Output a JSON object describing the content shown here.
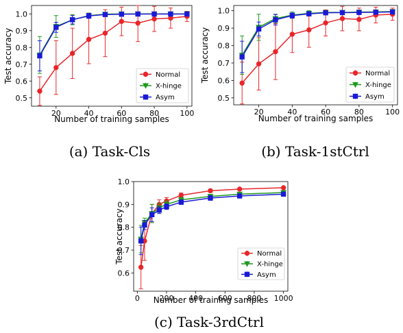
{
  "chart_data": [
    {
      "type": "line",
      "caption": "(a) Task-Cls",
      "xlabel": "Number of training samples",
      "ylabel": "Test accuracy",
      "xlim": [
        5,
        103
      ],
      "ylim": [
        0.45,
        1.05
      ],
      "xticks": [
        20,
        40,
        60,
        80,
        100
      ],
      "yticks": [
        0.5,
        0.6,
        0.7,
        0.8,
        0.9,
        1.0
      ],
      "ytick_labels": [
        "0.5",
        "0.6",
        "0.7",
        "0.8",
        "0.9",
        "1.0"
      ],
      "legend_position": "lower-right",
      "x": [
        10,
        20,
        30,
        40,
        50,
        60,
        70,
        80,
        90,
        100
      ],
      "series": [
        {
          "name": "Normal",
          "color": "#e8262a",
          "marker": "circle",
          "values": [
            0.54,
            0.68,
            0.765,
            0.848,
            0.885,
            0.955,
            0.945,
            0.97,
            0.975,
            0.985
          ],
          "err": [
            0.085,
            0.16,
            0.15,
            0.145,
            0.14,
            0.085,
            0.11,
            0.075,
            0.06,
            0.03
          ]
        },
        {
          "name": "X-hinge",
          "color": "#1e9a1e",
          "marker": "triangle-down",
          "values": [
            0.755,
            0.925,
            0.965,
            0.99,
            0.998,
            1.0,
            1.0,
            1.0,
            1.0,
            1.0
          ],
          "err": [
            0.11,
            0.065,
            0.03,
            0.015,
            0.008,
            0.003,
            0.003,
            0.002,
            0.002,
            0.002
          ]
        },
        {
          "name": "Asym",
          "color": "#1a1ad6",
          "marker": "square",
          "values": [
            0.75,
            0.92,
            0.965,
            0.988,
            0.996,
            0.998,
            0.999,
            0.999,
            0.999,
            0.999
          ],
          "err": [
            0.09,
            0.03,
            0.025,
            0.015,
            0.008,
            0.005,
            0.004,
            0.003,
            0.003,
            0.003
          ]
        }
      ]
    },
    {
      "type": "line",
      "caption": "(b) Task-1stCtrl",
      "xlabel": "Number of training samples",
      "ylabel": "Test accuracy",
      "xlim": [
        5,
        103
      ],
      "ylim": [
        0.46,
        1.03
      ],
      "xticks": [
        20,
        40,
        60,
        80,
        100
      ],
      "yticks": [
        0.5,
        0.6,
        0.7,
        0.8,
        0.9,
        1.0
      ],
      "ytick_labels": [
        "0.5",
        "0.6",
        "0.7",
        "0.8",
        "0.9",
        "1.0"
      ],
      "legend_position": "lower-right",
      "x": [
        10,
        20,
        30,
        40,
        50,
        60,
        70,
        80,
        90,
        100
      ],
      "series": [
        {
          "name": "Normal",
          "color": "#e8262a",
          "marker": "circle",
          "values": [
            0.585,
            0.695,
            0.765,
            0.865,
            0.89,
            0.93,
            0.955,
            0.95,
            0.975,
            0.98
          ],
          "err": [
            0.12,
            0.15,
            0.16,
            0.105,
            0.1,
            0.075,
            0.07,
            0.065,
            0.045,
            0.035
          ]
        },
        {
          "name": "X-hinge",
          "color": "#1e9a1e",
          "marker": "triangle-down",
          "values": [
            0.745,
            0.905,
            0.955,
            0.975,
            0.985,
            0.99,
            0.99,
            0.992,
            0.993,
            0.995
          ],
          "err": [
            0.11,
            0.075,
            0.025,
            0.018,
            0.015,
            0.01,
            0.008,
            0.006,
            0.005,
            0.004
          ]
        },
        {
          "name": "Asym",
          "color": "#1a1ad6",
          "marker": "square",
          "values": [
            0.735,
            0.895,
            0.948,
            0.972,
            0.982,
            0.988,
            0.989,
            0.99,
            0.991,
            0.993
          ],
          "err": [
            0.09,
            0.04,
            0.03,
            0.015,
            0.012,
            0.008,
            0.006,
            0.005,
            0.004,
            0.004
          ]
        }
      ]
    },
    {
      "type": "line",
      "caption": "(c) Task-3rdCtrl",
      "xlabel": "Number of training samples",
      "ylabel": "Test accuracy",
      "xlim": [
        -25,
        1030
      ],
      "ylim": [
        0.52,
        1.0
      ],
      "xticks": [
        0,
        200,
        400,
        600,
        800,
        1000
      ],
      "yticks": [
        0.6,
        0.7,
        0.8,
        0.9,
        1.0
      ],
      "ytick_labels": [
        "0.6",
        "0.7",
        "0.8",
        "0.9",
        "1.0"
      ],
      "legend_position": "lower-right",
      "x": [
        25,
        50,
        100,
        150,
        200,
        300,
        500,
        700,
        1000
      ],
      "series": [
        {
          "name": "Normal",
          "color": "#e8262a",
          "marker": "circle",
          "values": [
            0.625,
            0.74,
            0.86,
            0.9,
            0.915,
            0.94,
            0.96,
            0.967,
            0.973
          ],
          "err": [
            0.095,
            0.085,
            0.04,
            0.02,
            0.015,
            0.01,
            0.007,
            0.005,
            0.004
          ]
        },
        {
          "name": "X-hinge",
          "color": "#1e9a1e",
          "marker": "triangle-down",
          "values": [
            0.748,
            0.82,
            0.86,
            0.885,
            0.9,
            0.92,
            0.935,
            0.945,
            0.952
          ],
          "err": [
            0.06,
            0.02,
            0.04,
            0.02,
            0.015,
            0.01,
            0.009,
            0.008,
            0.007
          ]
        },
        {
          "name": "Asym",
          "color": "#1a1ad6",
          "marker": "square",
          "values": [
            0.74,
            0.81,
            0.855,
            0.875,
            0.89,
            0.91,
            0.928,
            0.937,
            0.945
          ],
          "err": [
            0.06,
            0.02,
            0.03,
            0.015,
            0.012,
            0.01,
            0.01,
            0.008,
            0.008
          ]
        }
      ]
    }
  ]
}
